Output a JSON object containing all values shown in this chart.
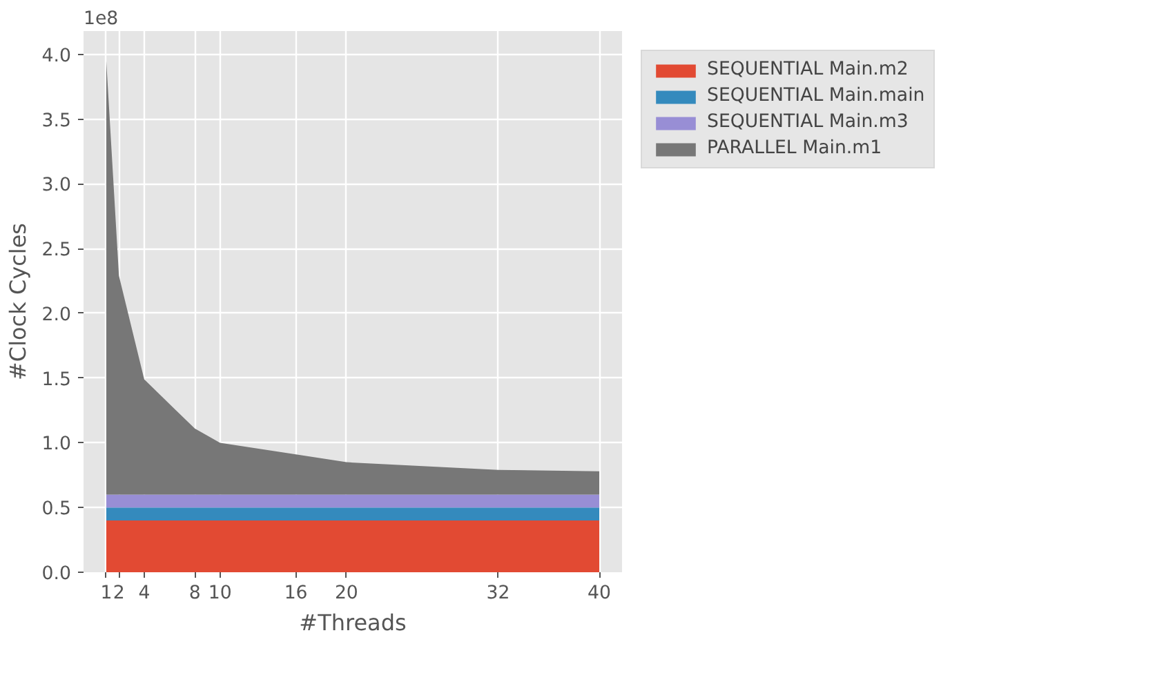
{
  "chart_data": {
    "type": "area",
    "stacked": true,
    "xlabel": "#Threads",
    "ylabel": "#Clock Cycles",
    "annotations": [
      "1e8"
    ],
    "x": [
      1,
      2,
      4,
      8,
      10,
      16,
      20,
      32,
      40
    ],
    "xlim": [
      -0.8,
      41.8
    ],
    "xticks": [
      1,
      2,
      4,
      8,
      10,
      16,
      20,
      32,
      40
    ],
    "ylim": [
      0,
      4.18
    ],
    "yticks": [
      {
        "value": 0,
        "label": "0.0"
      },
      0.5,
      {
        "value": 1,
        "label": "1.0"
      },
      1.5,
      {
        "value": 2,
        "label": "2.0"
      },
      2.5,
      {
        "value": 3,
        "label": "3.0"
      },
      3.5,
      {
        "value": 4,
        "label": "4.0"
      }
    ],
    "grid": true,
    "legend": "right",
    "series": [
      {
        "name": "SEQUENTIAL Main.m2",
        "color": "#e24a33",
        "values": [
          0.4,
          0.4,
          0.4,
          0.4,
          0.4,
          0.4,
          0.4,
          0.4,
          0.4
        ]
      },
      {
        "name": "SEQUENTIAL Main.main",
        "color": "#348abd",
        "values": [
          0.1,
          0.1,
          0.1,
          0.1,
          0.1,
          0.1,
          0.1,
          0.1,
          0.1
        ]
      },
      {
        "name": "SEQUENTIAL Main.m3",
        "color": "#988ed5",
        "values": [
          0.1,
          0.1,
          0.1,
          0.1,
          0.1,
          0.1,
          0.1,
          0.1,
          0.1
        ]
      },
      {
        "name": "PARALLEL Main.m1",
        "color": "#777777",
        "values": [
          3.35,
          1.69,
          0.89,
          0.51,
          0.4,
          0.31,
          0.25,
          0.19,
          0.18
        ]
      }
    ]
  }
}
